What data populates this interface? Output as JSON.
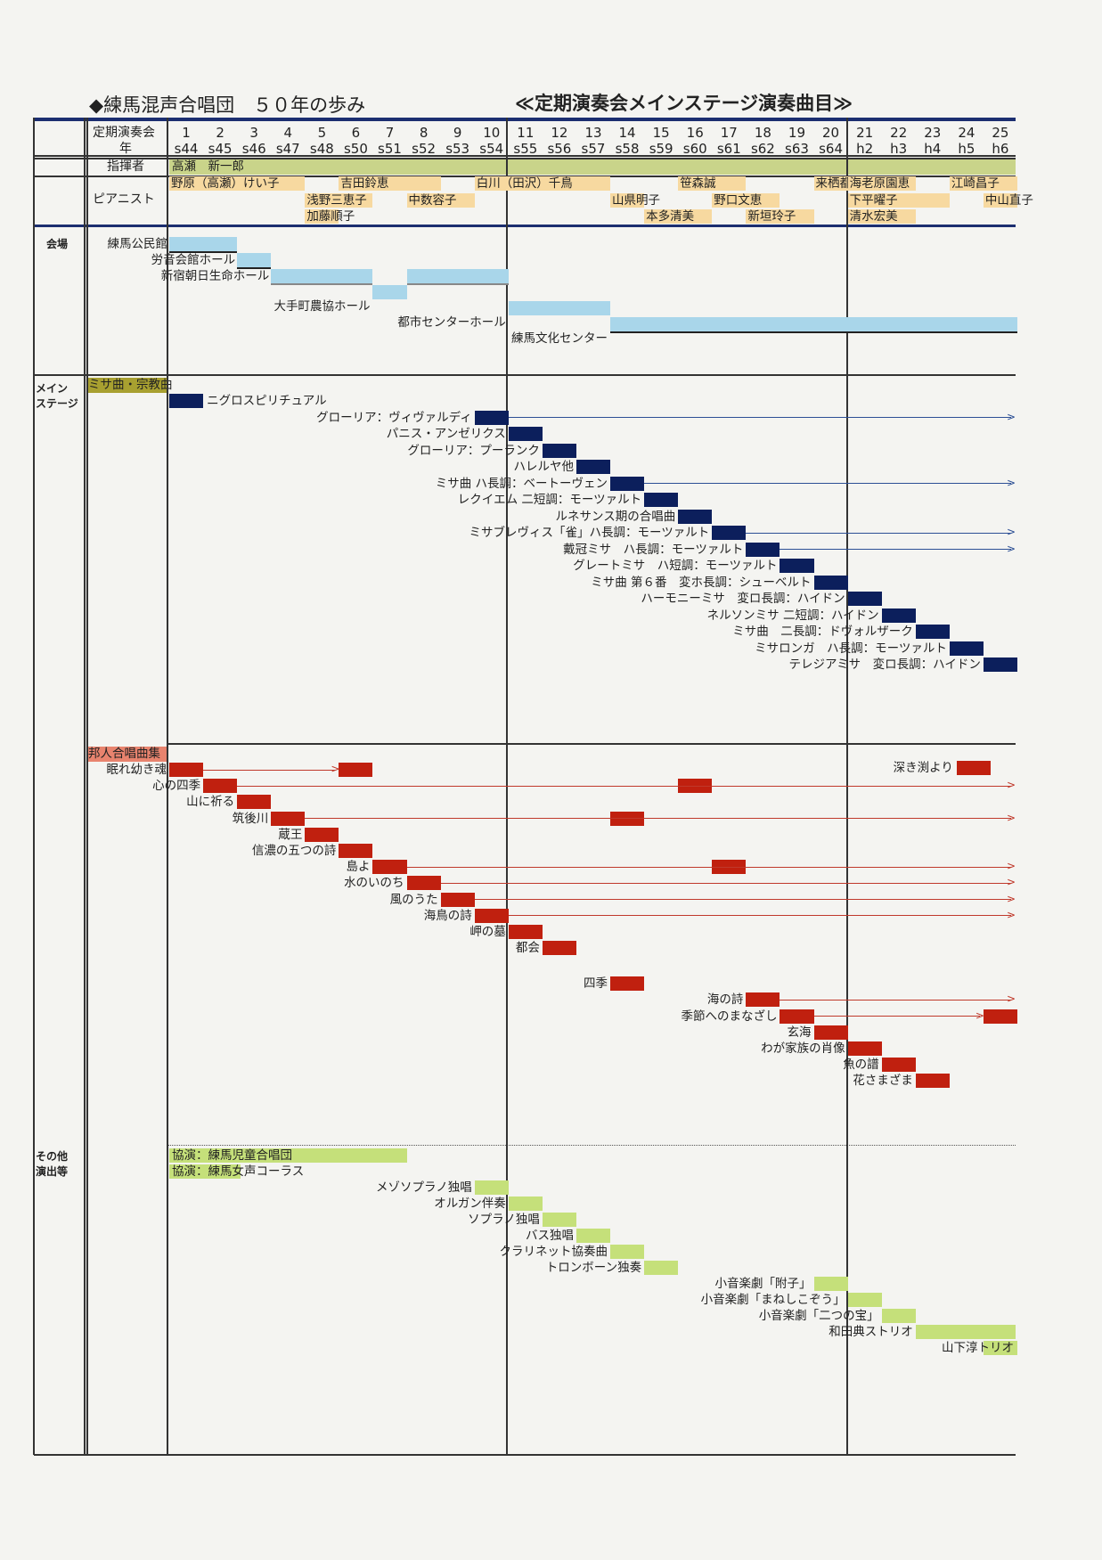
{
  "title": "◆練馬混声合唱団　５０年の歩み",
  "subtitle": "≪定期演奏会メインステージ演奏曲目≫",
  "header": {
    "concert_label": "定期演奏会",
    "year_label": "年",
    "conductor_label": "指揮者",
    "pianist_label": "ピアニスト",
    "numbers": [
      "1",
      "2",
      "3",
      "4",
      "5",
      "6",
      "7",
      "8",
      "9",
      "10",
      "11",
      "12",
      "13",
      "14",
      "15",
      "16",
      "17",
      "18",
      "19",
      "20",
      "21",
      "22",
      "23",
      "24",
      "25"
    ],
    "years": [
      "s44",
      "s45",
      "s46",
      "s47",
      "s48",
      "s50",
      "s51",
      "s52",
      "s53",
      "s54",
      "s55",
      "s56",
      "s57",
      "s58",
      "s59",
      "s60",
      "s61",
      "s62",
      "s63",
      "s64",
      "h2",
      "h3",
      "h4",
      "h5",
      "h6"
    ]
  },
  "conductor": {
    "name": "高瀬　新一郎"
  },
  "pianists": [
    {
      "name": "野原（高瀬）けい子",
      "row": 0,
      "from": 1,
      "to": 4
    },
    {
      "name": "吉田鈴恵",
      "row": 0,
      "from": 6,
      "to": 8
    },
    {
      "name": "白川（田沢）千鳥",
      "row": 0,
      "from": 10,
      "to": 13
    },
    {
      "name": "笹森誠",
      "row": 0,
      "from": 16,
      "to": 17
    },
    {
      "name": "来栖都",
      "row": 0,
      "from": 20,
      "to": 20
    },
    {
      "name": "海老原園恵",
      "row": 0,
      "from": 21,
      "to": 22
    },
    {
      "name": "江崎昌子",
      "row": 0,
      "from": 24,
      "to": 25
    },
    {
      "name": "浅野三恵子",
      "row": 1,
      "from": 5,
      "to": 6
    },
    {
      "name": "中数容子",
      "row": 1,
      "from": 8,
      "to": 9
    },
    {
      "name": "山県明子",
      "row": 1,
      "from": 14,
      "to": 14
    },
    {
      "name": "野口文恵",
      "row": 1,
      "from": 17,
      "to": 18
    },
    {
      "name": "下平曜子",
      "row": 1,
      "from": 21,
      "to": 23
    },
    {
      "name": "中山直子",
      "row": 1,
      "from": 25,
      "to": 25
    },
    {
      "name": "加藤順子",
      "row": 2,
      "from": 5,
      "to": 5
    },
    {
      "name": "本多清美",
      "row": 2,
      "from": 15,
      "to": 16
    },
    {
      "name": "新垣玲子",
      "row": 2,
      "from": 18,
      "to": 19
    },
    {
      "name": "清水宏美",
      "row": 2,
      "from": 21,
      "to": 22
    }
  ],
  "sections": {
    "venue": "会場",
    "main": "メイン\nステージ",
    "other": "その他\n演出等"
  },
  "venues": [
    {
      "name": "練馬公民館",
      "from": 1,
      "to": 2
    },
    {
      "name": "労音会館ホール",
      "from": 3,
      "to": 3
    },
    {
      "name": "新宿朝日生命ホール",
      "from": 4,
      "to": 6
    },
    {
      "name": "大手町農協ホール",
      "from": 7,
      "to": 7
    },
    {
      "name": "新宿朝日生命ホール",
      "from": 8,
      "to": 10,
      "hidden_label": true
    },
    {
      "name": "都市センターホール",
      "from": 11,
      "to": 13
    },
    {
      "name": "練馬文化センター",
      "from": 14,
      "to": 25
    }
  ],
  "mass_category": "ミサ曲・宗教曲",
  "mass_works": [
    {
      "name": "ニグロスピリチュアル",
      "at": 1,
      "label_after": true
    },
    {
      "name": "グローリア：ヴィヴァルディ",
      "at": 10,
      "arrow": true
    },
    {
      "name": "パニス・アンゼリクス",
      "at": 11
    },
    {
      "name": "グローリア：プーランク",
      "at": 12
    },
    {
      "name": "ハレルヤ他",
      "at": 13
    },
    {
      "name": "ミサ曲 ハ長調：ベートーヴェン",
      "at": 14,
      "arrow": true
    },
    {
      "name": "レクイエム 二短調：モーツァルト",
      "at": 15
    },
    {
      "name": "ルネサンス期の合唱曲",
      "at": 16
    },
    {
      "name": "ミサブレヴィス「雀」ハ長調：モーツァルト",
      "at": 17,
      "arrow": true
    },
    {
      "name": "戴冠ミサ　ハ長調：モーツァルト",
      "at": 18,
      "arrow": true
    },
    {
      "name": "グレートミサ　ハ短調：モーツァルト",
      "at": 19
    },
    {
      "name": "ミサ曲 第６番　変ホ長調：シューベルト",
      "at": 20
    },
    {
      "name": "ハーモニーミサ　変ロ長調：ハイドン",
      "at": 21
    },
    {
      "name": "ネルソンミサ 二短調：ハイドン",
      "at": 22
    },
    {
      "name": "ミサ曲　二長調：ドヴォルザーク",
      "at": 23
    },
    {
      "name": "ミサロンガ　ハ長調：モーツァルト",
      "at": 24
    },
    {
      "name": "テレジアミサ　変ロ長調：ハイドン",
      "at": 25
    }
  ],
  "japanese_category": "邦人合唱曲集",
  "japanese_works": [
    {
      "name": "眠れ幼き魂",
      "at": 1,
      "repeats": [
        6
      ],
      "arrow_to": 6
    },
    {
      "name": "心の四季",
      "at": 2,
      "repeats": [
        16
      ],
      "arrow": true
    },
    {
      "name": "山に祈る",
      "at": 3
    },
    {
      "name": "筑後川",
      "at": 4,
      "repeats": [
        14
      ],
      "arrow": true
    },
    {
      "name": "蔵王",
      "at": 5
    },
    {
      "name": "信濃の五つの詩",
      "at": 6
    },
    {
      "name": "島よ",
      "at": 7,
      "repeats": [
        17
      ],
      "arrow": true
    },
    {
      "name": "水のいのち",
      "at": 8,
      "arrow": true
    },
    {
      "name": "風のうた",
      "at": 9,
      "arrow": true
    },
    {
      "name": "海鳥の詩",
      "at": 10,
      "arrow": true
    },
    {
      "name": "岬の墓",
      "at": 11
    },
    {
      "name": "都会",
      "at": 12
    },
    {
      "name": "四季",
      "at": 14
    },
    {
      "name": "海の詩",
      "at": 18,
      "arrow": true
    },
    {
      "name": "季節へのまなざし",
      "at": 19,
      "repeats": [
        25
      ],
      "arrow_to": 25
    },
    {
      "name": "玄海",
      "at": 20
    },
    {
      "name": "わが家族の肖像",
      "at": 21
    },
    {
      "name": "魚の譜",
      "at": 22
    },
    {
      "name": "花さまざま",
      "at": 23
    },
    {
      "name": "深き渕より",
      "at": 24,
      "label_only_right": true
    }
  ],
  "other_works": [
    {
      "name": "協演：練馬児童合唱団",
      "from": 1,
      "to": 7,
      "label_inside": true
    },
    {
      "name": "協演：練馬女声コーラス",
      "from": 1,
      "to": 2,
      "label_inside": true
    },
    {
      "name": "メゾソプラノ独唱",
      "from": 10,
      "to": 10
    },
    {
      "name": "オルガン伴奏",
      "from": 11,
      "to": 11
    },
    {
      "name": "ソプラノ独唱",
      "from": 12,
      "to": 12
    },
    {
      "name": "バス独唱",
      "from": 13,
      "to": 13
    },
    {
      "name": "クラリネット協奏曲",
      "from": 14,
      "to": 14
    },
    {
      "name": "トロンボーン独奏",
      "from": 15,
      "to": 15
    },
    {
      "name": "小音楽劇「附子」",
      "from": 20,
      "to": 20
    },
    {
      "name": "小音楽劇「まねしこぞう」",
      "from": 21,
      "to": 21
    },
    {
      "name": "小音楽劇「二つの宝」",
      "from": 22,
      "to": 22
    },
    {
      "name": "和田典ストリオ",
      "from": 23,
      "to": 25
    },
    {
      "name": "山下淳トリオ",
      "from": 25,
      "to": 25,
      "label_below": true
    }
  ],
  "colors": {
    "olive": "#c9d48a",
    "pianist": "#f7d9a0",
    "venue": "#a9d6ea",
    "mass": "#0c1f5c",
    "japanese": "#c0200f",
    "other": "#c5e07a",
    "section_mass": "#a8a030",
    "section_jp": "#e8836e",
    "rule": "#1b2e70",
    "arrow_blue": "#2c4f95",
    "arrow_red": "#c0392b"
  }
}
